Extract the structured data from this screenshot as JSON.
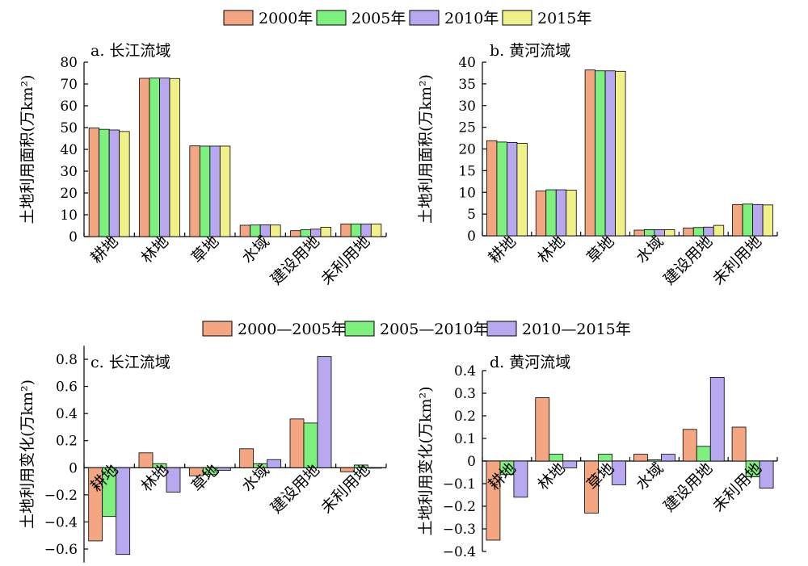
{
  "colors": {
    "c2000": "#f4a582",
    "c2005": "#7df07d",
    "c2010": "#b7a8f0",
    "c2015": "#f1f189",
    "axis": "#000000"
  },
  "legend_top": {
    "items": [
      {
        "label": "2000年",
        "color": "#f4a582"
      },
      {
        "label": "2005年",
        "color": "#7df07d"
      },
      {
        "label": "2010年",
        "color": "#b7a8f0"
      },
      {
        "label": "2015年",
        "color": "#f1f189"
      }
    ]
  },
  "legend_bottom": {
    "items": [
      {
        "label": "2000—2005年",
        "color": "#f4a582"
      },
      {
        "label": "2005—2010年",
        "color": "#7df07d"
      },
      {
        "label": "2010—2015年",
        "color": "#b7a8f0"
      }
    ]
  },
  "chart_data": [
    {
      "id": "a",
      "type": "bar",
      "title": "a. 长江流域",
      "ylabel": "土地利用面积(万km²)",
      "categories": [
        "耕地",
        "林地",
        "草地",
        "水域",
        "建设用地",
        "未利用地"
      ],
      "ylim": [
        0,
        80
      ],
      "yticks": [
        0,
        10,
        20,
        30,
        40,
        50,
        60,
        70,
        80
      ],
      "series": [
        {
          "name": "2000年",
          "values": [
            49.8,
            72.6,
            41.6,
            5.2,
            2.7,
            5.8
          ]
        },
        {
          "name": "2005年",
          "values": [
            49.2,
            72.7,
            41.5,
            5.3,
            3.1,
            5.8
          ]
        },
        {
          "name": "2010年",
          "values": [
            48.9,
            72.7,
            41.5,
            5.4,
            3.4,
            5.8
          ]
        },
        {
          "name": "2015年",
          "values": [
            48.2,
            72.5,
            41.5,
            5.3,
            4.3,
            5.8
          ]
        }
      ]
    },
    {
      "id": "b",
      "type": "bar",
      "title": "b. 黄河流域",
      "ylabel": "土地利用面积(万km²)",
      "categories": [
        "耕地",
        "林地",
        "草地",
        "水域",
        "建设用地",
        "未利用地"
      ],
      "ylim": [
        0,
        40
      ],
      "yticks": [
        0,
        5,
        10,
        15,
        20,
        25,
        30,
        35,
        40
      ],
      "series": [
        {
          "name": "2000年",
          "values": [
            21.9,
            10.3,
            38.2,
            1.3,
            1.8,
            7.2
          ]
        },
        {
          "name": "2005年",
          "values": [
            21.6,
            10.6,
            38.0,
            1.4,
            1.9,
            7.3
          ]
        },
        {
          "name": "2010年",
          "values": [
            21.5,
            10.6,
            38.0,
            1.4,
            2.0,
            7.2
          ]
        },
        {
          "name": "2015年",
          "values": [
            21.3,
            10.5,
            37.9,
            1.4,
            2.4,
            7.1
          ]
        }
      ]
    },
    {
      "id": "c",
      "type": "bar",
      "title": "c. 长江流域",
      "ylabel": "土地利用变化(万km²)",
      "categories": [
        "耕地",
        "林地",
        "草地",
        "水域",
        "建设用地",
        "未利用地"
      ],
      "ylim": [
        -0.7,
        0.9
      ],
      "yticks": [
        -0.6,
        -0.4,
        -0.2,
        0,
        0.2,
        0.4,
        0.6,
        0.8
      ],
      "series": [
        {
          "name": "2000—2005年",
          "values": [
            -0.54,
            0.11,
            -0.06,
            0.14,
            0.36,
            -0.03
          ]
        },
        {
          "name": "2005—2010年",
          "values": [
            -0.36,
            0.03,
            -0.05,
            0.03,
            0.33,
            0.02
          ]
        },
        {
          "name": "2010—2015年",
          "values": [
            -0.64,
            -0.18,
            -0.02,
            0.06,
            0.82,
            0.0
          ]
        }
      ]
    },
    {
      "id": "d",
      "type": "bar",
      "title": "d. 黄河流域",
      "ylabel": "土地利用变化(万km²)",
      "categories": [
        "耕地",
        "林地",
        "草地",
        "水域",
        "建设用地",
        "未利用地"
      ],
      "ylim": [
        -0.4,
        0.4
      ],
      "yticks": [
        -0.4,
        -0.3,
        -0.2,
        -0.1,
        0,
        0.1,
        0.2,
        0.3,
        0.4
      ],
      "series": [
        {
          "name": "2000—2005年",
          "values": [
            -0.35,
            0.28,
            -0.23,
            0.03,
            0.14,
            0.15
          ]
        },
        {
          "name": "2005—2010年",
          "values": [
            -0.06,
            0.03,
            0.03,
            0.005,
            0.065,
            -0.07
          ]
        },
        {
          "name": "2010—2015年",
          "values": [
            -0.16,
            -0.03,
            -0.105,
            0.03,
            0.37,
            -0.12
          ]
        }
      ]
    }
  ]
}
